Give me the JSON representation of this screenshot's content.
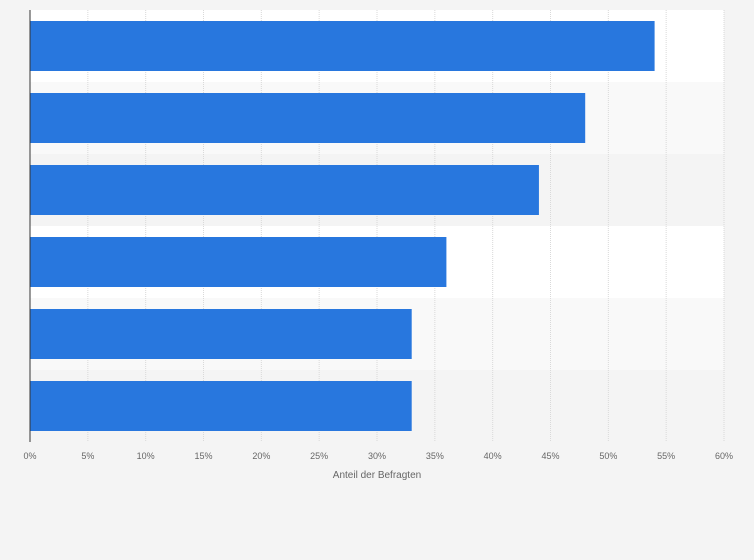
{
  "chart_data": {
    "type": "bar",
    "orientation": "horizontal",
    "categories": [
      "",
      "",
      "",
      "",
      "",
      ""
    ],
    "values": [
      54,
      48,
      44,
      36,
      33,
      33
    ],
    "xlabel": "Anteil der Befragten",
    "ylabel": "",
    "xlim": [
      0,
      60
    ],
    "x_ticks": [
      "0%",
      "5%",
      "10%",
      "15%",
      "20%",
      "25%",
      "30%",
      "35%",
      "40%",
      "45%",
      "50%",
      "55%",
      "60%"
    ],
    "grid": true,
    "bar_color": "#2877de",
    "band_colors": [
      "#ffffff",
      "#f9f9f9",
      "#f4f4f4"
    ]
  }
}
